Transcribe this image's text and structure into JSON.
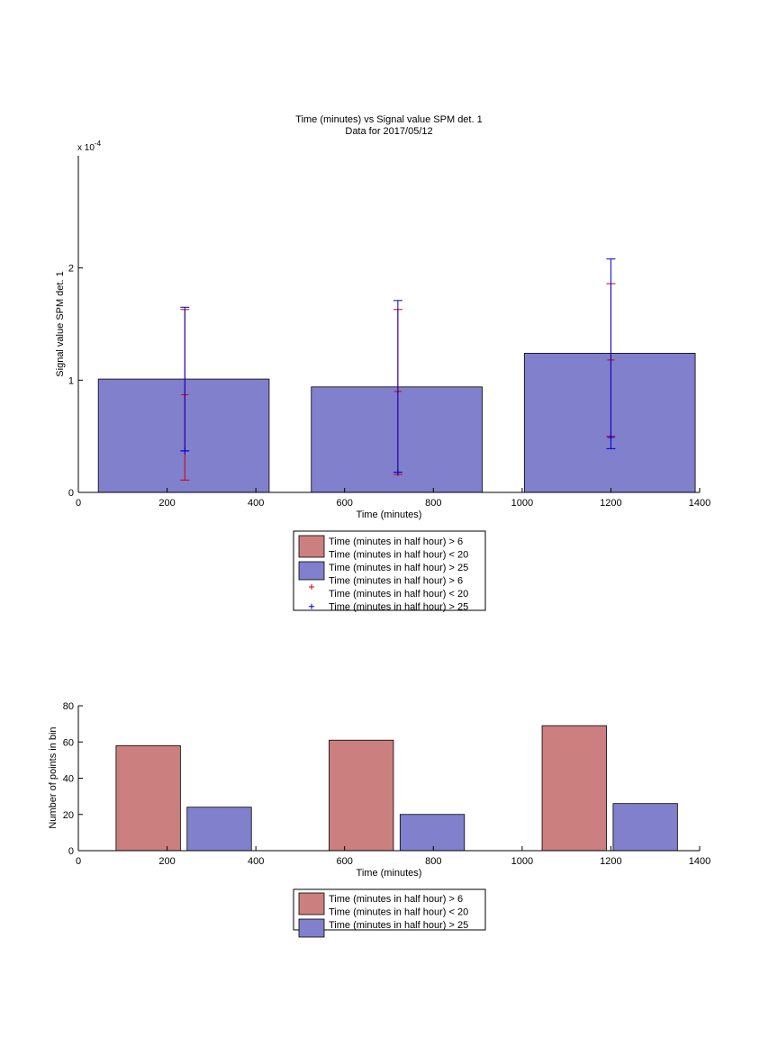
{
  "chart_data": [
    {
      "type": "bar",
      "title": "Time (minutes) vs Signal value SPM det. 1",
      "subtitle": "Data for 2017/05/12",
      "xlabel": "Time (minutes)",
      "ylabel": "Signal value SPM det. 1",
      "exponent_label": "x 10",
      "exponent_power": "-4",
      "xlim": [
        0,
        1400
      ],
      "ylim": [
        0,
        3.0
      ],
      "xticks": [
        "0",
        "200",
        "400",
        "600",
        "800",
        "1000",
        "1200",
        "1400"
      ],
      "yticks": [
        "0",
        "1",
        "2"
      ],
      "bars": [
        {
          "x0": 45,
          "x1": 430,
          "value": 1.01
        },
        {
          "x0": 525,
          "x1": 910,
          "value": 0.94
        },
        {
          "x0": 1005,
          "x1": 1390,
          "value": 1.24
        }
      ],
      "errorbars": [
        {
          "name": "Time (minutes in half hour) > 6 Time (minutes in half hour) < 20",
          "color": "#cc0000",
          "points": [
            {
              "x": 240,
              "y": 0.87,
              "low": 0.11,
              "high": 1.63
            },
            {
              "x": 720,
              "y": 0.9,
              "low": 0.16,
              "high": 1.63
            },
            {
              "x": 1200,
              "y": 1.18,
              "low": 0.5,
              "high": 1.86
            }
          ]
        },
        {
          "name": "Time (minutes in half hour) > 25",
          "color": "#0000cc",
          "points": [
            {
              "x": 240,
              "y": 0.37,
              "low": 0.37,
              "high": 1.65
            },
            {
              "x": 720,
              "y": 0.18,
              "low": 0.18,
              "high": 1.71
            },
            {
              "x": 1200,
              "y": 0.49,
              "low": 0.39,
              "high": 2.08
            }
          ]
        }
      ],
      "legend": [
        {
          "kind": "patch",
          "color": "#cc7f7f",
          "lines": [
            "Time (minutes in half hour) > 6",
            "Time (minutes in half hour) < 20"
          ]
        },
        {
          "kind": "patch",
          "color": "#8080cc",
          "lines": [
            "Time (minutes in half hour) > 25"
          ]
        },
        {
          "kind": "marker",
          "color": "#cc0000",
          "lines": [
            "Time (minutes in half hour) > 6",
            "Time (minutes in half hour) < 20"
          ]
        },
        {
          "kind": "marker",
          "color": "#0000cc",
          "lines": [
            "Time (minutes in half hour) > 25"
          ]
        }
      ],
      "legend_position": "below"
    },
    {
      "type": "bar",
      "xlabel": "Time (minutes)",
      "ylabel": "Number of points in bin",
      "xlim": [
        0,
        1400
      ],
      "ylim": [
        0,
        80
      ],
      "xticks": [
        "0",
        "200",
        "400",
        "600",
        "800",
        "1000",
        "1200",
        "1400"
      ],
      "yticks": [
        "0",
        "20",
        "40",
        "60",
        "80"
      ],
      "series": [
        {
          "name": "Time (minutes in half hour) > 6 Time (minutes in half hour) < 20",
          "color": "#cc7f7f",
          "bars": [
            {
              "x0": 85,
              "x1": 230,
              "value": 58
            },
            {
              "x0": 565,
              "x1": 710,
              "value": 61
            },
            {
              "x0": 1045,
              "x1": 1190,
              "value": 69
            }
          ]
        },
        {
          "name": "Time (minutes in half hour) > 25",
          "color": "#8080cc",
          "bars": [
            {
              "x0": 245,
              "x1": 390,
              "value": 24
            },
            {
              "x0": 725,
              "x1": 870,
              "value": 20
            },
            {
              "x0": 1205,
              "x1": 1350,
              "value": 26
            }
          ]
        }
      ],
      "legend": [
        {
          "kind": "patch",
          "color": "#cc7f7f",
          "lines": [
            "Time (minutes in half hour) > 6",
            "Time (minutes in half hour) < 20"
          ]
        },
        {
          "kind": "patch",
          "color": "#8080cc",
          "lines": [
            "Time (minutes in half hour) > 25"
          ]
        }
      ],
      "legend_position": "below"
    }
  ]
}
